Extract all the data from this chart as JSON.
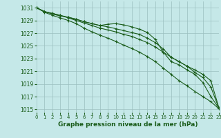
{
  "title": "Graphe pression niveau de la mer (hPa)",
  "bg_color": "#c5e8e8",
  "grid_color": "#9bbfbf",
  "line_color": "#1a5c1a",
  "text_color": "#1a5c1a",
  "xlim": [
    0,
    23
  ],
  "ylim": [
    1014.5,
    1032
  ],
  "yticks": [
    1015,
    1017,
    1019,
    1021,
    1023,
    1025,
    1027,
    1029,
    1031
  ],
  "xticks": [
    0,
    1,
    2,
    3,
    4,
    5,
    6,
    7,
    8,
    9,
    10,
    11,
    12,
    13,
    14,
    15,
    16,
    17,
    18,
    19,
    20,
    21,
    22,
    23
  ],
  "series1": [
    1031.0,
    1030.4,
    1030.0,
    1029.7,
    1029.5,
    1029.2,
    1028.8,
    1028.5,
    1028.2,
    1028.4,
    1028.5,
    1028.3,
    1028.0,
    1027.6,
    1027.1,
    1026.0,
    1024.0,
    1022.5,
    1022.0,
    1021.2,
    1020.5,
    1019.2,
    1017.0,
    1015.2
  ],
  "series2": [
    1031.0,
    1030.4,
    1030.1,
    1029.8,
    1029.5,
    1029.2,
    1028.8,
    1028.5,
    1028.2,
    1028.0,
    1027.7,
    1027.4,
    1027.1,
    1026.8,
    1026.2,
    1025.5,
    1024.5,
    1023.2,
    1022.5,
    1021.8,
    1021.2,
    1020.5,
    1019.5,
    1015.3
  ],
  "series3": [
    1031.0,
    1030.4,
    1030.1,
    1029.8,
    1029.4,
    1029.0,
    1028.6,
    1028.2,
    1027.8,
    1027.5,
    1027.2,
    1026.8,
    1026.5,
    1026.0,
    1025.5,
    1024.8,
    1024.0,
    1023.2,
    1022.5,
    1021.8,
    1020.8,
    1020.0,
    1018.5,
    1015.2
  ],
  "series4": [
    1031.0,
    1030.3,
    1029.8,
    1029.4,
    1029.0,
    1028.5,
    1027.8,
    1027.2,
    1026.7,
    1026.2,
    1025.7,
    1025.1,
    1024.6,
    1024.0,
    1023.3,
    1022.5,
    1021.5,
    1020.5,
    1019.5,
    1018.7,
    1017.8,
    1017.0,
    1016.2,
    1015.1
  ]
}
